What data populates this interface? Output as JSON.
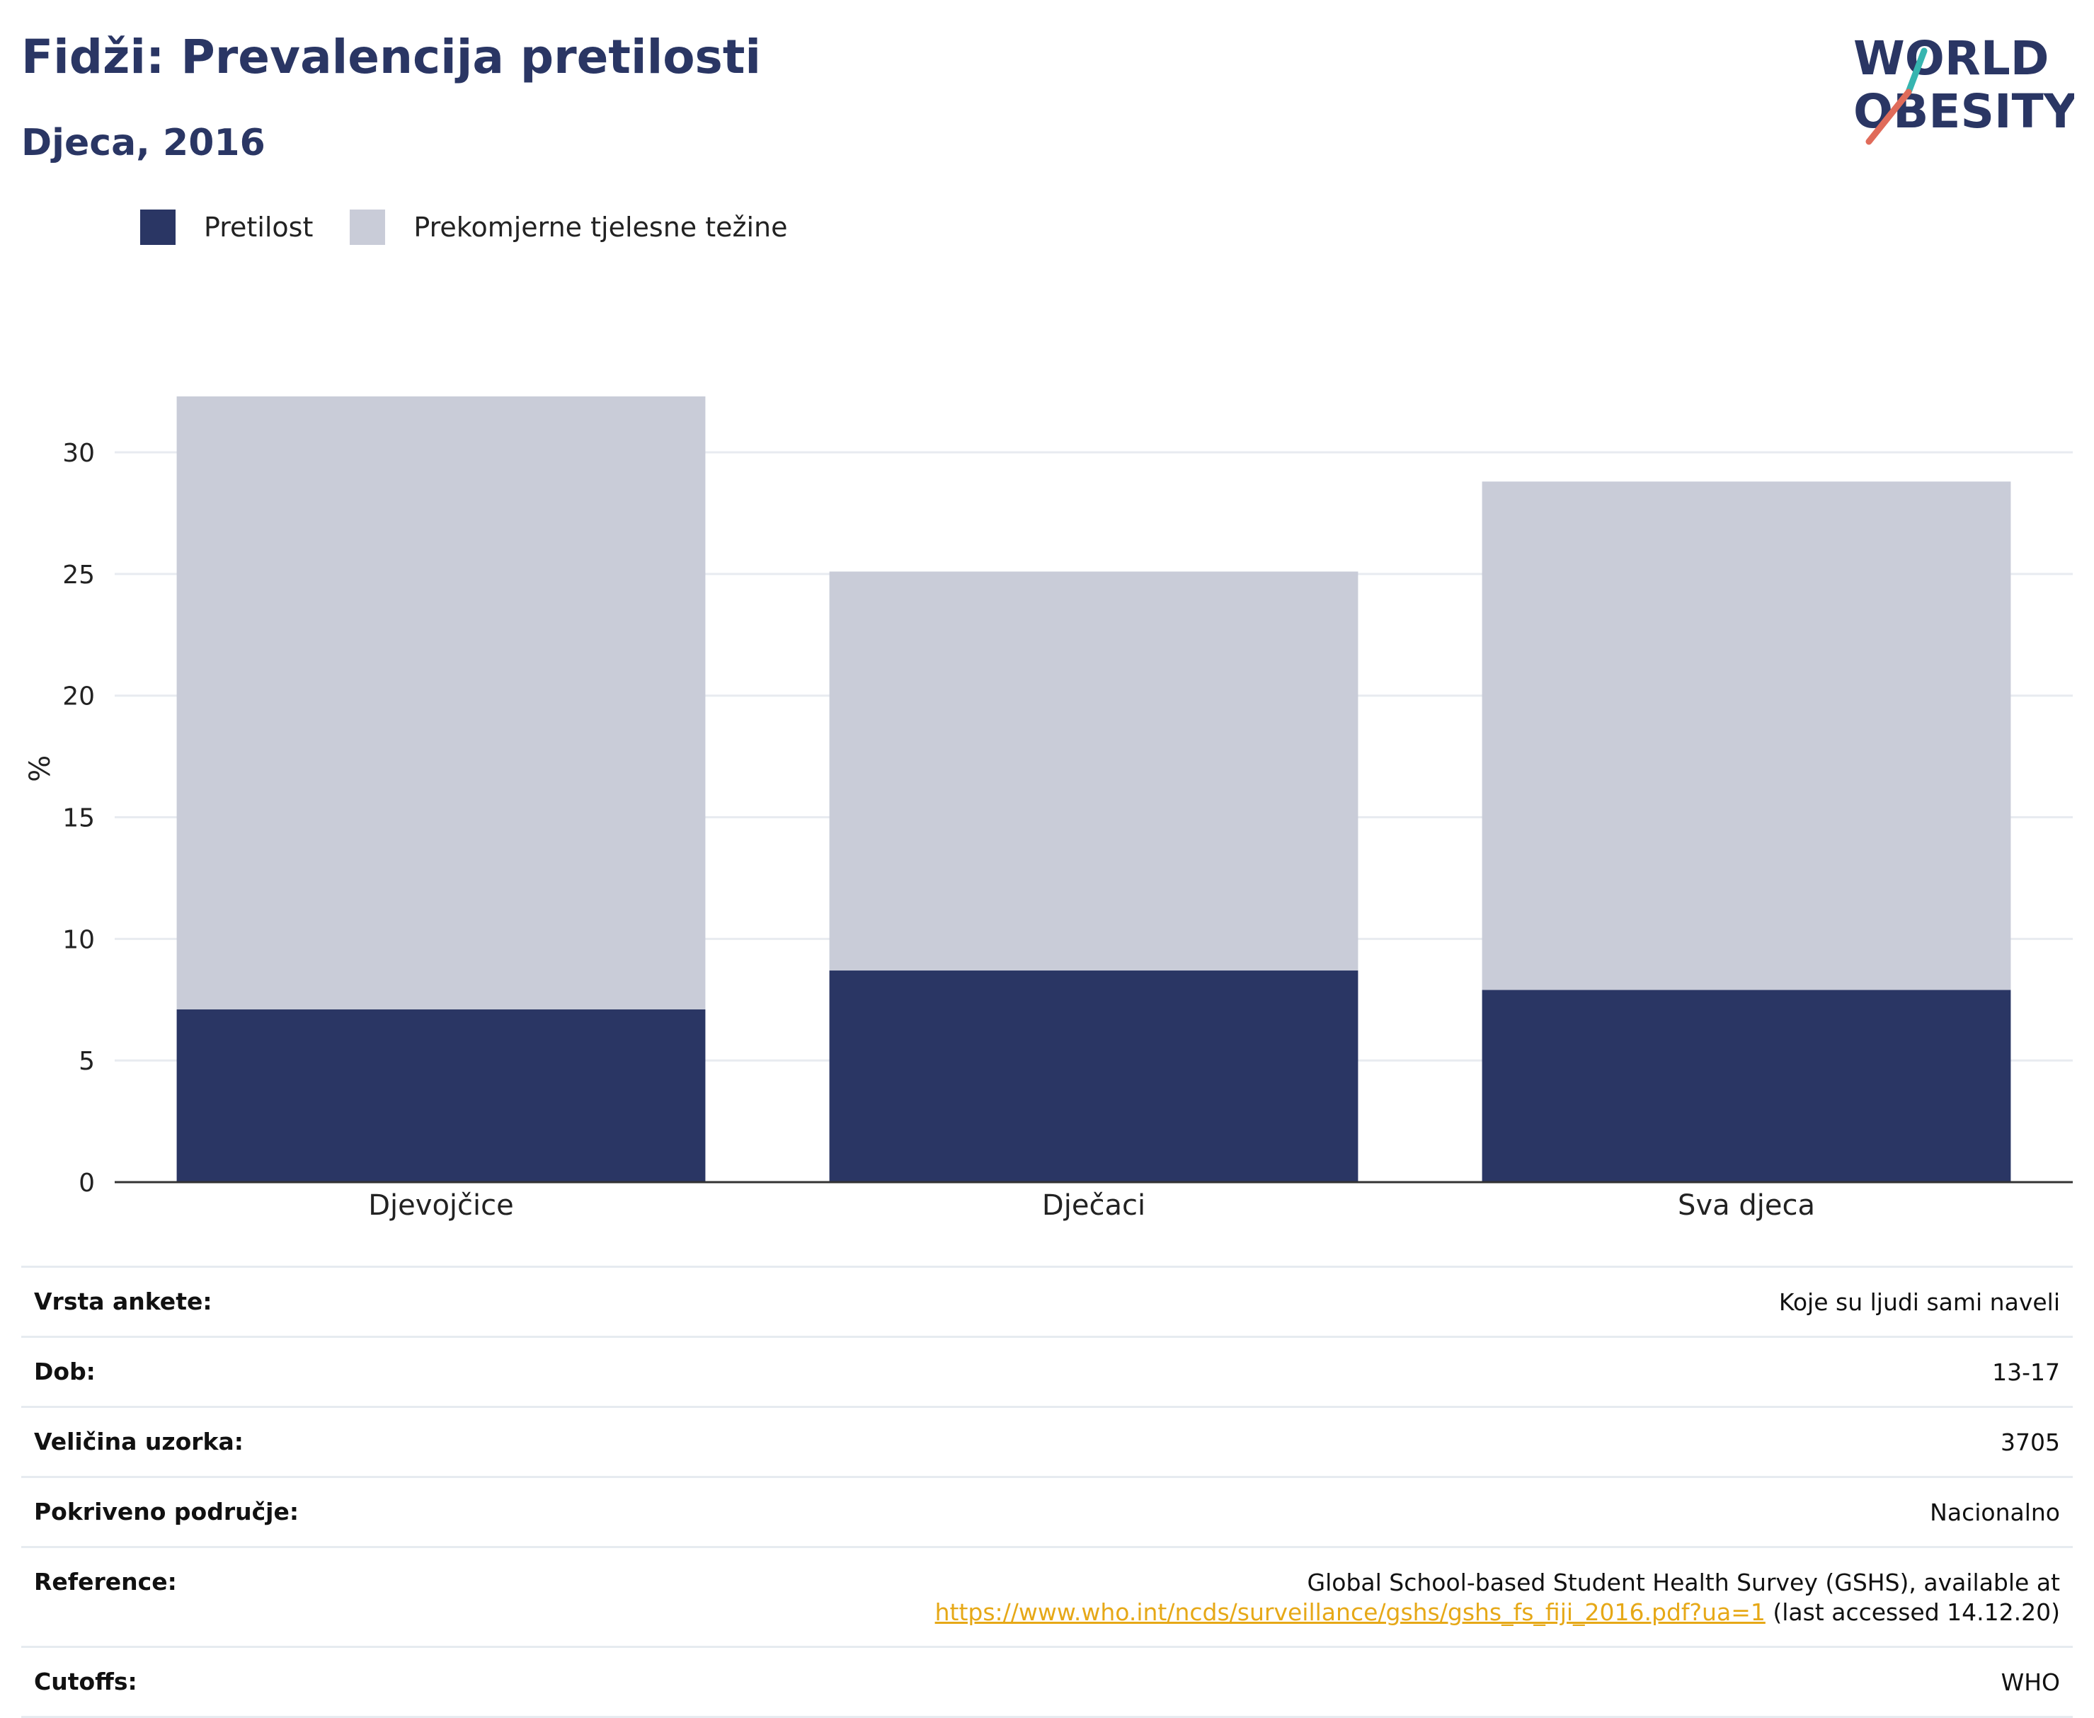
{
  "header": {
    "title": "Fidži: Prevalencija pretilosti",
    "subtitle": "Djeca, 2016"
  },
  "logo": {
    "line1": "WORLD",
    "line2": "OBESITY"
  },
  "legend": [
    {
      "label": "Pretilost",
      "color": "#2a3664"
    },
    {
      "label": "Prekomjerne tjelesne težine",
      "color": "#c9ccd8"
    }
  ],
  "chart_data": {
    "type": "bar",
    "stacked": true,
    "categories": [
      "Djevojčice",
      "Dječaci",
      "Sva djeca"
    ],
    "series": [
      {
        "name": "Pretilost",
        "color": "#2a3664",
        "values": [
          7.1,
          8.7,
          7.9
        ]
      },
      {
        "name": "Prekomjerne tjelesne težine",
        "color": "#c9ccd8",
        "values": [
          25.2,
          16.4,
          20.9
        ]
      }
    ],
    "ylabel": "%",
    "ylim": [
      0,
      32.3
    ],
    "yticks": [
      0,
      5,
      10,
      15,
      20,
      25,
      30
    ],
    "grid": true
  },
  "info": [
    {
      "key": "Vrsta ankete:",
      "value": "Koje su ljudi sami naveli"
    },
    {
      "key": "Dob:",
      "value": "13-17"
    },
    {
      "key": "Veličina uzorka:",
      "value": "3705"
    },
    {
      "key": "Pokriveno područje:",
      "value": "Nacionalno"
    },
    {
      "key": "Reference:",
      "value": "Global School-based Student Health Survey (GSHS), available at",
      "link": "https://www.who.int/ncds/surveillance/gshs/gshs_fs_fiji_2016.pdf?ua=1",
      "suffix": "(last accessed 14.12.20)"
    },
    {
      "key": "Cutoffs:",
      "value": "WHO"
    }
  ]
}
